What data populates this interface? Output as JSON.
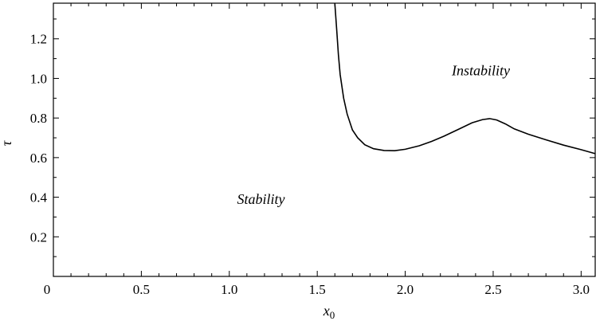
{
  "chart_data": {
    "type": "line",
    "title": "",
    "xlabel": "x",
    "xlabel_subscript": "0",
    "ylabel": "τ",
    "xlim": [
      0,
      3.08
    ],
    "ylim": [
      0,
      1.38
    ],
    "x_ticks": [
      0,
      0.5,
      1.0,
      1.5,
      2.0,
      2.5,
      3.0
    ],
    "x_tick_labels": [
      "0",
      "0.5",
      "1.0",
      "1.5",
      "2.0",
      "2.5",
      "3.0"
    ],
    "y_ticks": [
      0.2,
      0.4,
      0.6,
      0.8,
      1.0,
      1.2
    ],
    "y_tick_labels": [
      "0.2",
      "0.4",
      "0.6",
      "0.8",
      "1.0",
      "1.2"
    ],
    "grid": false,
    "legend": "none",
    "series": [
      {
        "x": [
          1.6,
          1.61,
          1.62,
          1.63,
          1.65,
          1.67,
          1.7,
          1.73,
          1.77,
          1.82,
          1.88,
          1.94,
          2.0,
          2.08,
          2.15,
          2.22,
          2.3,
          2.38,
          2.44,
          2.48,
          2.52,
          2.57,
          2.62,
          2.7,
          2.8,
          2.9,
          3.0,
          3.08
        ],
        "values": [
          1.38,
          1.25,
          1.12,
          1.02,
          0.9,
          0.82,
          0.74,
          0.7,
          0.665,
          0.645,
          0.636,
          0.635,
          0.642,
          0.66,
          0.682,
          0.708,
          0.742,
          0.776,
          0.792,
          0.797,
          0.79,
          0.77,
          0.745,
          0.718,
          0.69,
          0.663,
          0.64,
          0.62
        ]
      }
    ],
    "annotations": [
      {
        "text": "Instability",
        "x": 2.43,
        "y": 1.04
      },
      {
        "text": "Stability",
        "x": 1.18,
        "y": 0.39
      }
    ]
  }
}
